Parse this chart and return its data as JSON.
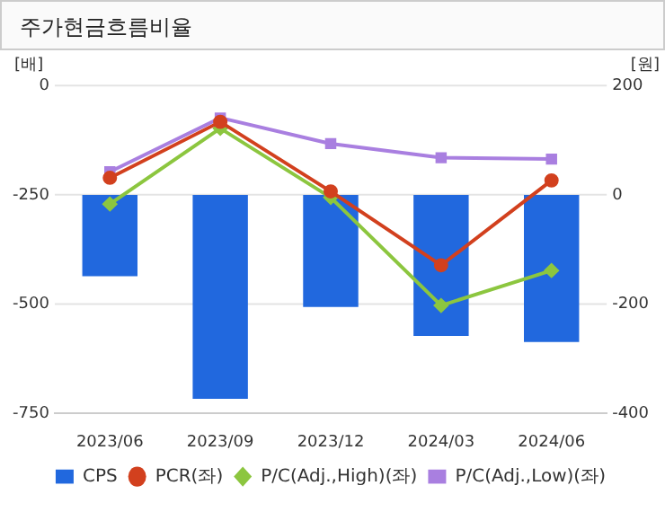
{
  "chart_data": {
    "type": "line",
    "title": "주가현금흐름비율",
    "ylabel": "[배]",
    "y2label": "[원]",
    "categories": [
      "2023/06",
      "2023/09",
      "2023/12",
      "2024/03",
      "2024/06"
    ],
    "series": [
      {
        "name": "CPS",
        "type": "bar",
        "axis": "y2",
        "color": "#2168de",
        "values": [
          -149,
          -373,
          -205,
          -258,
          -269
        ]
      },
      {
        "name": "PCR(좌)",
        "marker": "circle",
        "color": "#d2401e",
        "values": [
          -211,
          -83,
          -242,
          -411,
          -217
        ]
      },
      {
        "name": "P/C(Adj.,High)(좌)",
        "marker": "diamond",
        "color": "#8cc63f",
        "values": [
          -271,
          -98,
          -256,
          -503,
          -423
        ]
      },
      {
        "name": "P/C(Adj.,Low)(좌)",
        "marker": "square",
        "color": "#a97fe0",
        "values": [
          -197,
          -74,
          -133,
          -165,
          -168
        ]
      }
    ],
    "ylim": [
      -750,
      0
    ],
    "yticks": [
      0,
      -250,
      -500,
      -750
    ],
    "y2lim": [
      -400,
      200
    ],
    "y2ticks": [
      200,
      0,
      -200,
      -400
    ],
    "grid": "y",
    "legend": "bottom"
  }
}
